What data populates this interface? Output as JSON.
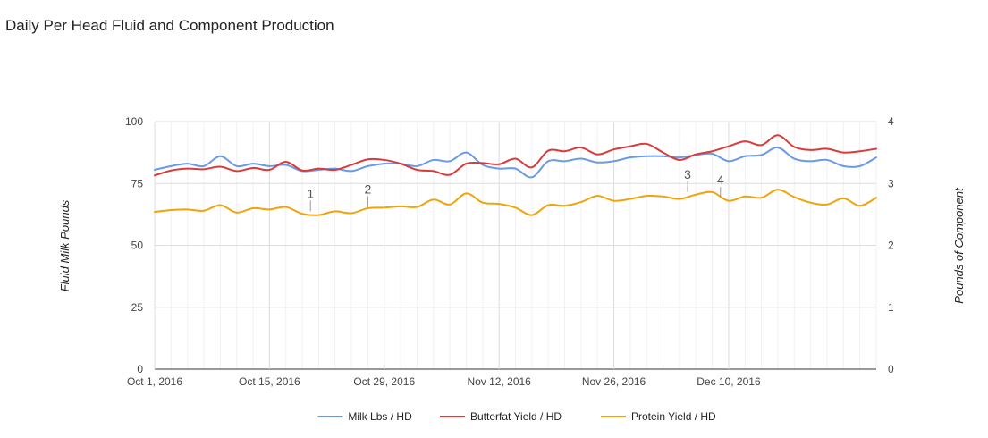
{
  "chart_data": {
    "type": "line",
    "title": "Daily Per Head Fluid and Component Production",
    "y_left": {
      "label": "Fluid Milk Pounds",
      "ylim": [
        0,
        100
      ],
      "ticks": [
        "0",
        "25",
        "50",
        "75",
        "100"
      ]
    },
    "y_right": {
      "label": "Pounds of Component",
      "ylim": [
        0,
        4
      ],
      "ticks": [
        "0",
        "1",
        "2",
        "3",
        "4"
      ]
    },
    "x_start": "2016-10-01",
    "x_end": "2016-12-28",
    "x_ticks": [
      {
        "date": "2016-10-01",
        "label": "Oct 1, 2016"
      },
      {
        "date": "2016-10-15",
        "label": "Oct 15, 2016"
      },
      {
        "date": "2016-10-29",
        "label": "Oct 29, 2016"
      },
      {
        "date": "2016-11-12",
        "label": "Nov 12, 2016"
      },
      {
        "date": "2016-11-26",
        "label": "Nov 26, 2016"
      },
      {
        "date": "2016-12-10",
        "label": "Dec 10, 2016"
      }
    ],
    "grid": true,
    "legend_position": "bottom",
    "series": [
      {
        "name": "Milk Lbs / HD",
        "axis": "left",
        "color": "#6a9ae6",
        "points": [
          [
            "2016-10-01",
            80.5
          ],
          [
            "2016-10-03",
            82.0
          ],
          [
            "2016-10-05",
            83.0
          ],
          [
            "2016-10-07",
            82.0
          ],
          [
            "2016-10-09",
            86.0
          ],
          [
            "2016-10-11",
            82.0
          ],
          [
            "2016-10-13",
            83.0
          ],
          [
            "2016-10-15",
            82.0
          ],
          [
            "2016-10-17",
            82.5
          ],
          [
            "2016-10-19",
            80.0
          ],
          [
            "2016-10-21",
            80.5
          ],
          [
            "2016-10-23",
            81.0
          ],
          [
            "2016-10-25",
            80.0
          ],
          [
            "2016-10-27",
            82.0
          ],
          [
            "2016-10-29",
            83.0
          ],
          [
            "2016-10-31",
            83.0
          ],
          [
            "2016-11-02",
            82.0
          ],
          [
            "2016-11-04",
            84.5
          ],
          [
            "2016-11-06",
            84.0
          ],
          [
            "2016-11-08",
            87.5
          ],
          [
            "2016-11-10",
            82.5
          ],
          [
            "2016-11-12",
            81.0
          ],
          [
            "2016-11-14",
            81.0
          ],
          [
            "2016-11-16",
            77.5
          ],
          [
            "2016-11-18",
            84.0
          ],
          [
            "2016-11-20",
            84.0
          ],
          [
            "2016-11-22",
            85.0
          ],
          [
            "2016-11-24",
            83.5
          ],
          [
            "2016-11-26",
            84.0
          ],
          [
            "2016-11-28",
            85.5
          ],
          [
            "2016-11-30",
            86.0
          ],
          [
            "2016-12-02",
            86.0
          ],
          [
            "2016-12-04",
            85.5
          ],
          [
            "2016-12-06",
            86.5
          ],
          [
            "2016-12-08",
            87.0
          ],
          [
            "2016-12-10",
            84.0
          ],
          [
            "2016-12-12",
            86.0
          ],
          [
            "2016-12-14",
            86.5
          ],
          [
            "2016-12-16",
            89.5
          ],
          [
            "2016-12-18",
            85.0
          ],
          [
            "2016-12-20",
            84.0
          ],
          [
            "2016-12-22",
            84.5
          ],
          [
            "2016-12-24",
            82.0
          ],
          [
            "2016-12-26",
            82.0
          ],
          [
            "2016-12-28",
            85.5
          ]
        ]
      },
      {
        "name": "Butterfat Yield / HD",
        "axis": "right",
        "color": "#d93b3b",
        "points": [
          [
            "2016-10-01",
            3.13
          ],
          [
            "2016-10-03",
            3.21
          ],
          [
            "2016-10-05",
            3.24
          ],
          [
            "2016-10-07",
            3.23
          ],
          [
            "2016-10-09",
            3.27
          ],
          [
            "2016-10-11",
            3.2
          ],
          [
            "2016-10-13",
            3.25
          ],
          [
            "2016-10-15",
            3.22
          ],
          [
            "2016-10-17",
            3.35
          ],
          [
            "2016-10-19",
            3.21
          ],
          [
            "2016-10-21",
            3.24
          ],
          [
            "2016-10-23",
            3.22
          ],
          [
            "2016-10-25",
            3.3
          ],
          [
            "2016-10-27",
            3.39
          ],
          [
            "2016-10-29",
            3.38
          ],
          [
            "2016-10-31",
            3.32
          ],
          [
            "2016-11-02",
            3.22
          ],
          [
            "2016-11-04",
            3.2
          ],
          [
            "2016-11-06",
            3.14
          ],
          [
            "2016-11-08",
            3.32
          ],
          [
            "2016-11-10",
            3.33
          ],
          [
            "2016-11-12",
            3.31
          ],
          [
            "2016-11-14",
            3.4
          ],
          [
            "2016-11-16",
            3.26
          ],
          [
            "2016-11-18",
            3.53
          ],
          [
            "2016-11-20",
            3.52
          ],
          [
            "2016-11-22",
            3.58
          ],
          [
            "2016-11-24",
            3.47
          ],
          [
            "2016-11-26",
            3.55
          ],
          [
            "2016-11-28",
            3.6
          ],
          [
            "2016-11-30",
            3.64
          ],
          [
            "2016-12-02",
            3.5
          ],
          [
            "2016-12-04",
            3.38
          ],
          [
            "2016-12-06",
            3.47
          ],
          [
            "2016-12-08",
            3.52
          ],
          [
            "2016-12-10",
            3.6
          ],
          [
            "2016-12-12",
            3.68
          ],
          [
            "2016-12-14",
            3.62
          ],
          [
            "2016-12-16",
            3.78
          ],
          [
            "2016-12-18",
            3.59
          ],
          [
            "2016-12-20",
            3.54
          ],
          [
            "2016-12-22",
            3.56
          ],
          [
            "2016-12-24",
            3.5
          ],
          [
            "2016-12-26",
            3.52
          ],
          [
            "2016-12-28",
            3.56
          ]
        ]
      },
      {
        "name": "Protein Yield / HD",
        "axis": "right",
        "color": "#f0a30a",
        "points": [
          [
            "2016-10-01",
            2.54
          ],
          [
            "2016-10-03",
            2.57
          ],
          [
            "2016-10-05",
            2.58
          ],
          [
            "2016-10-07",
            2.56
          ],
          [
            "2016-10-09",
            2.65
          ],
          [
            "2016-10-11",
            2.53
          ],
          [
            "2016-10-13",
            2.6
          ],
          [
            "2016-10-15",
            2.58
          ],
          [
            "2016-10-17",
            2.62
          ],
          [
            "2016-10-19",
            2.51
          ],
          [
            "2016-10-21",
            2.49
          ],
          [
            "2016-10-23",
            2.55
          ],
          [
            "2016-10-25",
            2.52
          ],
          [
            "2016-10-27",
            2.6
          ],
          [
            "2016-10-29",
            2.61
          ],
          [
            "2016-10-31",
            2.63
          ],
          [
            "2016-11-02",
            2.62
          ],
          [
            "2016-11-04",
            2.74
          ],
          [
            "2016-11-06",
            2.66
          ],
          [
            "2016-11-08",
            2.84
          ],
          [
            "2016-11-10",
            2.69
          ],
          [
            "2016-11-12",
            2.67
          ],
          [
            "2016-11-14",
            2.61
          ],
          [
            "2016-11-16",
            2.49
          ],
          [
            "2016-11-18",
            2.65
          ],
          [
            "2016-11-20",
            2.64
          ],
          [
            "2016-11-22",
            2.7
          ],
          [
            "2016-11-24",
            2.8
          ],
          [
            "2016-11-26",
            2.72
          ],
          [
            "2016-11-28",
            2.75
          ],
          [
            "2016-11-30",
            2.8
          ],
          [
            "2016-12-02",
            2.79
          ],
          [
            "2016-12-04",
            2.75
          ],
          [
            "2016-12-06",
            2.82
          ],
          [
            "2016-12-08",
            2.86
          ],
          [
            "2016-12-10",
            2.72
          ],
          [
            "2016-12-12",
            2.79
          ],
          [
            "2016-12-14",
            2.77
          ],
          [
            "2016-12-16",
            2.9
          ],
          [
            "2016-12-18",
            2.78
          ],
          [
            "2016-12-20",
            2.69
          ],
          [
            "2016-12-22",
            2.66
          ],
          [
            "2016-12-24",
            2.76
          ],
          [
            "2016-12-26",
            2.64
          ],
          [
            "2016-12-28",
            2.77
          ]
        ]
      }
    ],
    "annotations": [
      {
        "label": "1",
        "date": "2016-10-20",
        "value": 2.55
      },
      {
        "label": "2",
        "date": "2016-10-27",
        "value": 2.62
      },
      {
        "label": "3",
        "date": "2016-12-05",
        "value": 2.86
      },
      {
        "label": "4",
        "date": "2016-12-09",
        "value": 2.77
      }
    ]
  }
}
